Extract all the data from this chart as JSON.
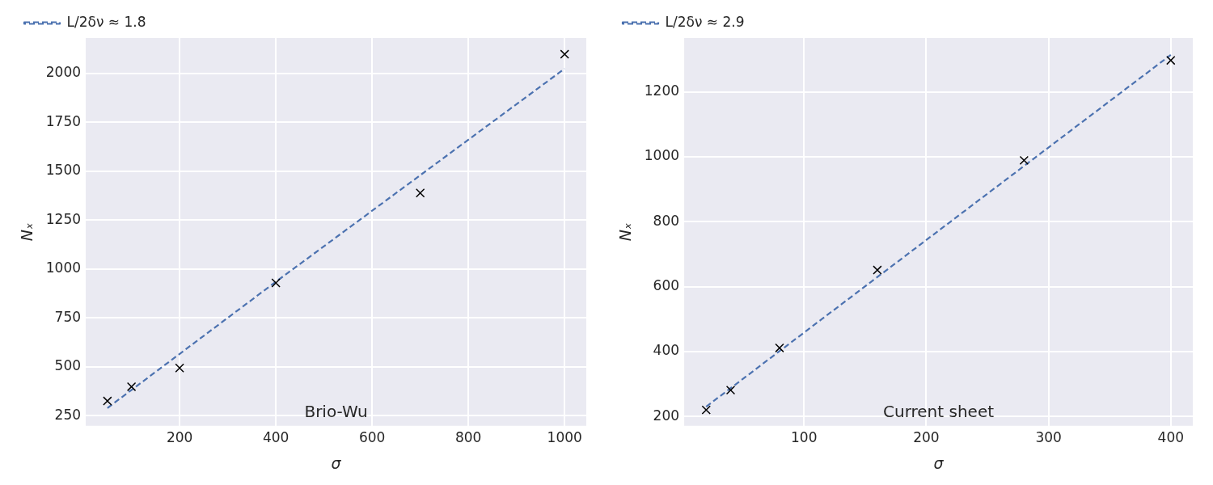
{
  "chart_data": [
    {
      "type": "scatter",
      "xlabel": "σ",
      "ylabel": "Nₓ",
      "xlim": [
        5,
        1045
      ],
      "ylim": [
        198,
        2182
      ],
      "xticks": [
        200,
        400,
        600,
        800,
        1000
      ],
      "yticks": [
        250,
        500,
        750,
        1000,
        1250,
        1500,
        1750,
        2000
      ],
      "grid": true,
      "legend": "top left",
      "annotations": [
        "Brio-Wu"
      ],
      "series": [
        {
          "type": "scatter",
          "color": "#000000",
          "marker": "cross",
          "x": [
            50,
            100,
            200,
            400,
            700,
            1000
          ],
          "values": [
            325,
            398,
            494,
            929,
            1389,
            2099
          ]
        },
        {
          "type": "line",
          "name": "L/2δν ≈ 1.8",
          "color": "#4c72b0",
          "line_style": "dashed",
          "marker": "none",
          "x": [
            50,
            400,
            1000
          ],
          "values": [
            289,
            935,
            2025
          ]
        }
      ]
    },
    {
      "type": "scatter",
      "xlabel": "σ",
      "ylabel": "Nₓ",
      "xlim": [
        2,
        418
      ],
      "ylim": [
        171,
        1366
      ],
      "xticks": [
        100,
        200,
        300,
        400
      ],
      "yticks": [
        200,
        400,
        600,
        800,
        1000,
        1200
      ],
      "grid": true,
      "legend": "top left",
      "annotations": [
        "Current sheet"
      ],
      "series": [
        {
          "type": "scatter",
          "color": "#000000",
          "marker": "cross",
          "x": [
            20,
            40,
            80,
            160,
            280,
            400
          ],
          "values": [
            220,
            281,
            411,
            651,
            989,
            1297
          ]
        },
        {
          "type": "line",
          "name": "L/2δν ≈ 2.9",
          "color": "#4c72b0",
          "line_style": "dashed",
          "marker": "none",
          "x": [
            20,
            400
          ],
          "values": [
            230,
            1314
          ]
        }
      ]
    }
  ]
}
